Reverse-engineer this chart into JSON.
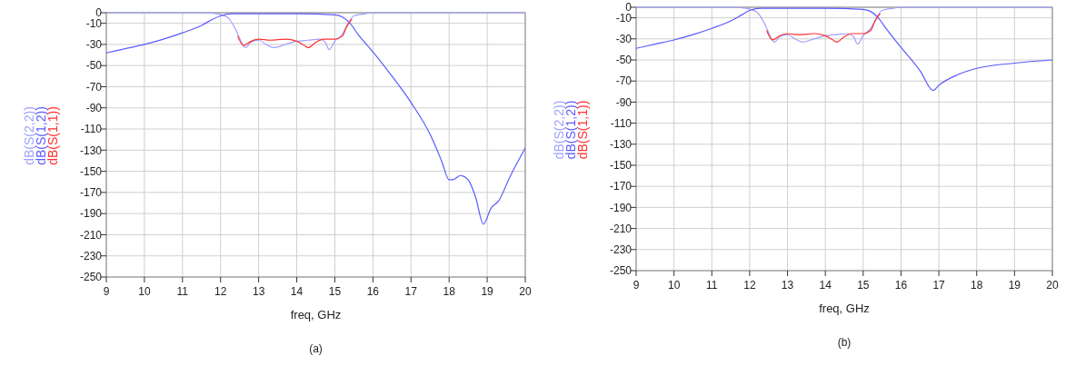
{
  "chart_data": [
    {
      "type": "line",
      "xlabel": "freq, GHz",
      "annotations": [
        "(a)"
      ],
      "xlim": [
        9,
        20
      ],
      "xticks": [
        9,
        10,
        11,
        12,
        13,
        14,
        15,
        16,
        17,
        18,
        19,
        20
      ],
      "ylim": [
        -250,
        0
      ],
      "yticks": [
        0,
        -10,
        -30,
        -50,
        -70,
        -90,
        -110,
        -130,
        -150,
        -170,
        -190,
        -210,
        -230,
        -250
      ],
      "grid": true,
      "legend": "left",
      "series": [
        {
          "name": "dB(S(2,2))",
          "color": "#a0a0ff",
          "x": [
            9,
            11.5,
            11.9,
            12.2,
            12.4,
            12.55,
            12.65,
            12.8,
            13,
            13.2,
            13.4,
            13.7,
            14,
            14.3,
            14.6,
            14.75,
            14.85,
            15,
            15.2,
            15.35,
            15.5,
            15.8,
            16,
            20
          ],
          "values": [
            0,
            0,
            -1,
            -5,
            -16,
            -28,
            -33,
            -28,
            -26,
            -30,
            -33,
            -30,
            -27,
            -26,
            -25,
            -28,
            -35,
            -27,
            -20,
            -10,
            -3,
            -1,
            0,
            0
          ]
        },
        {
          "name": "dB(S(1,2))",
          "color": "#5a5aff",
          "x": [
            9,
            9.5,
            10,
            10.5,
            11,
            11.5,
            11.8,
            12,
            12.3,
            13,
            14,
            15,
            15.2,
            15.4,
            15.6,
            16,
            16.5,
            17,
            17.5,
            17.8,
            18,
            18.1,
            18.3,
            18.5,
            18.7,
            18.9,
            19.1,
            19.3,
            19.6,
            20
          ],
          "values": [
            -38,
            -34,
            -30,
            -25,
            -19,
            -12,
            -6,
            -3,
            -1,
            -1,
            -1,
            -2,
            -4,
            -10,
            -20,
            -37,
            -60,
            -85,
            -115,
            -140,
            -158,
            -158,
            -154,
            -158,
            -175,
            -200,
            -185,
            -178,
            -155,
            -128
          ]
        },
        {
          "name": "dB(S(1,1))",
          "color": "#ff3030",
          "x": [
            12.45,
            12.6,
            12.8,
            13,
            13.3,
            13.7,
            14,
            14.2,
            14.3,
            14.5,
            14.7,
            15,
            15.2,
            15.3,
            15.45
          ],
          "values": [
            -22,
            -31,
            -27,
            -25,
            -26,
            -25,
            -27,
            -31,
            -33,
            -28,
            -25,
            -25,
            -22,
            -14,
            -6
          ]
        }
      ]
    },
    {
      "type": "line",
      "xlabel": "freq, GHz",
      "annotations": [
        "(b)"
      ],
      "xlim": [
        9,
        20
      ],
      "xticks": [
        9,
        10,
        11,
        12,
        13,
        14,
        15,
        16,
        17,
        18,
        19,
        20
      ],
      "ylim": [
        -250,
        0
      ],
      "yticks": [
        0,
        -10,
        -30,
        -50,
        -70,
        -90,
        -110,
        -130,
        -150,
        -170,
        -190,
        -210,
        -230,
        -250
      ],
      "grid": true,
      "legend": "left",
      "series": [
        {
          "name": "dB(S(2,2))",
          "color": "#a0a0ff",
          "x": [
            9,
            11.5,
            11.9,
            12.2,
            12.4,
            12.55,
            12.65,
            12.8,
            13,
            13.2,
            13.4,
            13.7,
            14,
            14.3,
            14.6,
            14.75,
            14.85,
            15,
            15.2,
            15.35,
            15.5,
            15.8,
            16,
            20
          ],
          "values": [
            0,
            0,
            -1,
            -5,
            -16,
            -28,
            -33,
            -28,
            -26,
            -30,
            -33,
            -30,
            -27,
            -26,
            -25,
            -28,
            -35,
            -27,
            -20,
            -10,
            -3,
            -1,
            0,
            0
          ]
        },
        {
          "name": "dB(S(1,2))",
          "color": "#5a5aff",
          "x": [
            9,
            9.5,
            10,
            10.5,
            11,
            11.5,
            11.8,
            12,
            12.3,
            13,
            14,
            15,
            15.2,
            15.4,
            15.6,
            16,
            16.5,
            16.85,
            17,
            17.5,
            18,
            19,
            20
          ],
          "values": [
            -39,
            -35,
            -31,
            -26,
            -20,
            -13,
            -7,
            -3,
            -1,
            -1,
            -1,
            -2,
            -4,
            -10,
            -20,
            -38,
            -60,
            -79,
            -74,
            -64,
            -58,
            -53,
            -50
          ]
        },
        {
          "name": "dB(S(1,1))",
          "color": "#ff3030",
          "x": [
            12.45,
            12.6,
            12.8,
            13,
            13.3,
            13.7,
            14,
            14.2,
            14.3,
            14.5,
            14.7,
            15,
            15.2,
            15.3,
            15.45
          ],
          "values": [
            -22,
            -31,
            -27,
            -25,
            -26,
            -25,
            -27,
            -31,
            -33,
            -28,
            -25,
            -25,
            -22,
            -14,
            -6
          ]
        }
      ]
    }
  ]
}
